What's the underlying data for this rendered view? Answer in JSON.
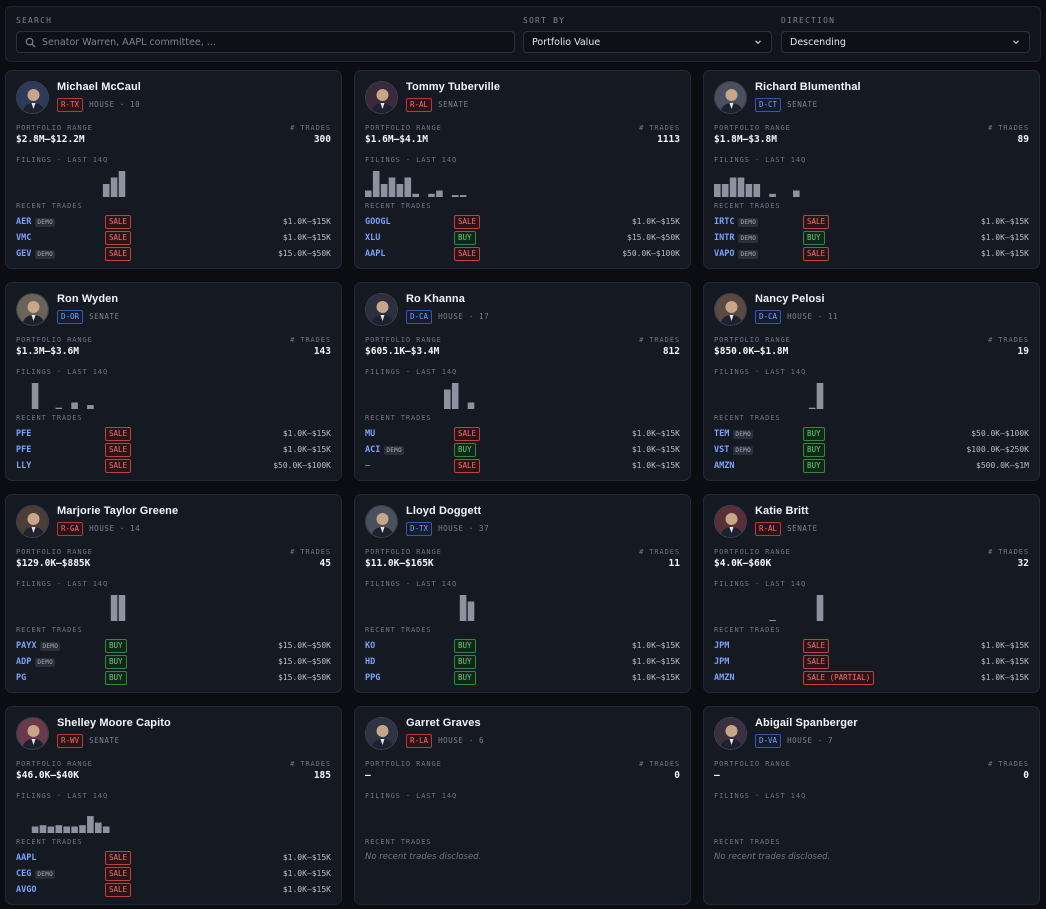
{
  "filters": {
    "search": {
      "label": "SEARCH",
      "placeholder": "Senator Warren, AAPL committee, ..."
    },
    "sort": {
      "label": "SORT BY",
      "value": "Portfolio Value"
    },
    "direction": {
      "label": "DIRECTION",
      "value": "Descending"
    }
  },
  "labels": {
    "portfolio_range": "PORTFOLIO RANGE",
    "trades": "# TRADES",
    "filings": "FILINGS · LAST 14Q",
    "recent_trades": "RECENT TRADES",
    "demo": "DEMO"
  },
  "colors": {
    "republican": "#ff6b6b",
    "democrat": "#7aa2ff",
    "sale": "#ff6b6b",
    "buy": "#58d86b",
    "spark": "#8c92a0"
  },
  "cards": [
    {
      "name": "Michael McCaul",
      "party_tag": "R-TX",
      "party": "r",
      "chamber": "HOUSE · 10",
      "range": "$2.8M–$12.2M",
      "trades": "300",
      "avatar_bg": "#2e3a5a",
      "filings": [
        0,
        0,
        0,
        0,
        0,
        0,
        0,
        0,
        0,
        0,
        0,
        2,
        3,
        4
      ],
      "recent": [
        {
          "ticker": "AER",
          "demo": true,
          "action": "SALE",
          "amount": "$1.0K–$15K"
        },
        {
          "ticker": "VMC",
          "demo": false,
          "action": "SALE",
          "amount": "$1.0K–$15K"
        },
        {
          "ticker": "GEV",
          "demo": true,
          "action": "SALE",
          "amount": "$15.0K–$50K"
        }
      ]
    },
    {
      "name": "Tommy Tuberville",
      "party_tag": "R-AL",
      "party": "r",
      "chamber": "SENATE",
      "range": "$1.6M–$4.1M",
      "trades": "1113",
      "avatar_bg": "#3a2a3a",
      "filings": [
        1,
        4,
        2,
        3,
        2,
        3,
        0.5,
        0,
        0.5,
        1,
        0,
        0.3,
        0.3,
        0
      ],
      "recent": [
        {
          "ticker": "GOOGL",
          "demo": false,
          "action": "SALE",
          "amount": "$1.0K–$15K"
        },
        {
          "ticker": "XLU",
          "demo": false,
          "action": "BUY",
          "amount": "$15.0K–$50K"
        },
        {
          "ticker": "AAPL",
          "demo": false,
          "action": "SALE",
          "amount": "$50.0K–$100K"
        }
      ]
    },
    {
      "name": "Richard Blumenthal",
      "party_tag": "D-CT",
      "party": "d",
      "chamber": "SENATE",
      "range": "$1.8M–$3.8M",
      "trades": "89",
      "avatar_bg": "#4a5060",
      "filings": [
        2,
        2,
        3,
        3,
        2,
        2,
        0,
        0.5,
        0,
        0,
        1,
        0,
        0,
        0
      ],
      "recent": [
        {
          "ticker": "IRTC",
          "demo": true,
          "action": "SALE",
          "amount": "$1.0K–$15K"
        },
        {
          "ticker": "INTR",
          "demo": true,
          "action": "BUY",
          "amount": "$1.0K–$15K"
        },
        {
          "ticker": "VAPO",
          "demo": true,
          "action": "SALE",
          "amount": "$1.0K–$15K"
        }
      ]
    },
    {
      "name": "Ron Wyden",
      "party_tag": "D-OR",
      "party": "d",
      "chamber": "SENATE",
      "range": "$1.3M–$3.6M",
      "trades": "143",
      "avatar_bg": "#6a6458",
      "filings": [
        0,
        0,
        4,
        0,
        0,
        0.2,
        0,
        1,
        0,
        0.6,
        0,
        0,
        0,
        0
      ],
      "recent": [
        {
          "ticker": "PFE",
          "demo": false,
          "action": "SALE",
          "amount": "$1.0K–$15K"
        },
        {
          "ticker": "PFE",
          "demo": false,
          "action": "SALE",
          "amount": "$1.0K–$15K"
        },
        {
          "ticker": "LLY",
          "demo": false,
          "action": "SALE",
          "amount": "$50.0K–$100K"
        }
      ]
    },
    {
      "name": "Ro Khanna",
      "party_tag": "D-CA",
      "party": "d",
      "chamber": "HOUSE · 17",
      "range": "$605.1K–$3.4M",
      "trades": "812",
      "avatar_bg": "#2c3040",
      "filings": [
        0,
        0,
        0,
        0,
        0,
        0,
        0,
        0,
        0,
        0,
        3,
        4,
        0,
        1
      ],
      "recent": [
        {
          "ticker": "MU",
          "demo": false,
          "action": "SALE",
          "amount": "$1.0K–$15K"
        },
        {
          "ticker": "ACI",
          "demo": true,
          "action": "BUY",
          "amount": "$1.0K–$15K"
        },
        {
          "ticker": "—",
          "demo": false,
          "action": "SALE",
          "amount": "$1.0K–$15K"
        }
      ]
    },
    {
      "name": "Nancy Pelosi",
      "party_tag": "D-CA",
      "party": "d",
      "chamber": "HOUSE · 11",
      "range": "$850.0K–$1.8M",
      "trades": "19",
      "avatar_bg": "#5a4a40",
      "filings": [
        0,
        0,
        0,
        0,
        0,
        0,
        0,
        0,
        0,
        0,
        0,
        0,
        0.2,
        4
      ],
      "recent": [
        {
          "ticker": "TEM",
          "demo": true,
          "action": "BUY",
          "amount": "$50.0K–$100K"
        },
        {
          "ticker": "VST",
          "demo": true,
          "action": "BUY",
          "amount": "$100.0K–$250K"
        },
        {
          "ticker": "AMZN",
          "demo": false,
          "action": "BUY",
          "amount": "$500.0K–$1M"
        }
      ]
    },
    {
      "name": "Marjorie Taylor Greene",
      "party_tag": "R-GA",
      "party": "r",
      "chamber": "HOUSE · 14",
      "range": "$129.0K–$885K",
      "trades": "45",
      "avatar_bg": "#4a3e36",
      "filings": [
        0,
        0,
        0,
        0,
        0,
        0,
        0,
        0,
        0,
        0,
        0,
        0,
        4,
        4
      ],
      "recent": [
        {
          "ticker": "PAYX",
          "demo": true,
          "action": "BUY",
          "amount": "$15.0K–$50K"
        },
        {
          "ticker": "ADP",
          "demo": true,
          "action": "BUY",
          "amount": "$15.0K–$50K"
        },
        {
          "ticker": "PG",
          "demo": false,
          "action": "BUY",
          "amount": "$15.0K–$50K"
        }
      ]
    },
    {
      "name": "Lloyd Doggett",
      "party_tag": "D-TX",
      "party": "d",
      "chamber": "HOUSE · 37",
      "range": "$11.0K–$165K",
      "trades": "11",
      "avatar_bg": "#4a505c",
      "filings": [
        0,
        0,
        0,
        0,
        0,
        0,
        0,
        0,
        0,
        0,
        0,
        0,
        4,
        3
      ],
      "recent": [
        {
          "ticker": "KO",
          "demo": false,
          "action": "BUY",
          "amount": "$1.0K–$15K"
        },
        {
          "ticker": "HD",
          "demo": false,
          "action": "BUY",
          "amount": "$1.0K–$15K"
        },
        {
          "ticker": "PPG",
          "demo": false,
          "action": "BUY",
          "amount": "$1.0K–$15K"
        }
      ]
    },
    {
      "name": "Katie Britt",
      "party_tag": "R-AL",
      "party": "r",
      "chamber": "SENATE",
      "range": "$4.0K–$60K",
      "trades": "32",
      "avatar_bg": "#5a3036",
      "filings": [
        0,
        0,
        0,
        0,
        0,
        0,
        0,
        0.15,
        0,
        0,
        0,
        0,
        0,
        4
      ],
      "recent": [
        {
          "ticker": "JPM",
          "demo": false,
          "action": "SALE",
          "amount": "$1.0K–$15K"
        },
        {
          "ticker": "JPM",
          "demo": false,
          "action": "SALE",
          "amount": "$1.0K–$15K"
        },
        {
          "ticker": "AMZN",
          "demo": false,
          "action": "SALE (PARTIAL)",
          "amount": "$1.0K–$15K"
        }
      ]
    },
    {
      "name": "Shelley Moore Capito",
      "party_tag": "R-WV",
      "party": "r",
      "chamber": "SENATE",
      "range": "$46.0K–$40K",
      "trades": "185",
      "avatar_bg": "#6a3a4a",
      "filings": [
        0,
        0,
        1,
        1.2,
        1,
        1.2,
        1,
        1,
        1.2,
        2.6,
        1.6,
        1,
        0,
        0
      ],
      "recent": [
        {
          "ticker": "AAPL",
          "demo": false,
          "action": "SALE",
          "amount": "$1.0K–$15K"
        },
        {
          "ticker": "CEG",
          "demo": true,
          "action": "SALE",
          "amount": "$1.0K–$15K"
        },
        {
          "ticker": "AVGO",
          "demo": false,
          "action": "SALE",
          "amount": "$1.0K–$15K"
        }
      ]
    },
    {
      "name": "Garret Graves",
      "party_tag": "R-LA",
      "party": "r",
      "chamber": "HOUSE · 6",
      "range": "–",
      "trades": "0",
      "avatar_bg": "#2e3444",
      "filings": [],
      "recent": [],
      "no_trades": "No recent trades disclosed."
    },
    {
      "name": "Abigail Spanberger",
      "party_tag": "D-VA",
      "party": "d",
      "chamber": "HOUSE · 7",
      "range": "–",
      "trades": "0",
      "avatar_bg": "#3a3040",
      "filings": [],
      "recent": [],
      "no_trades": "No recent trades disclosed."
    }
  ]
}
